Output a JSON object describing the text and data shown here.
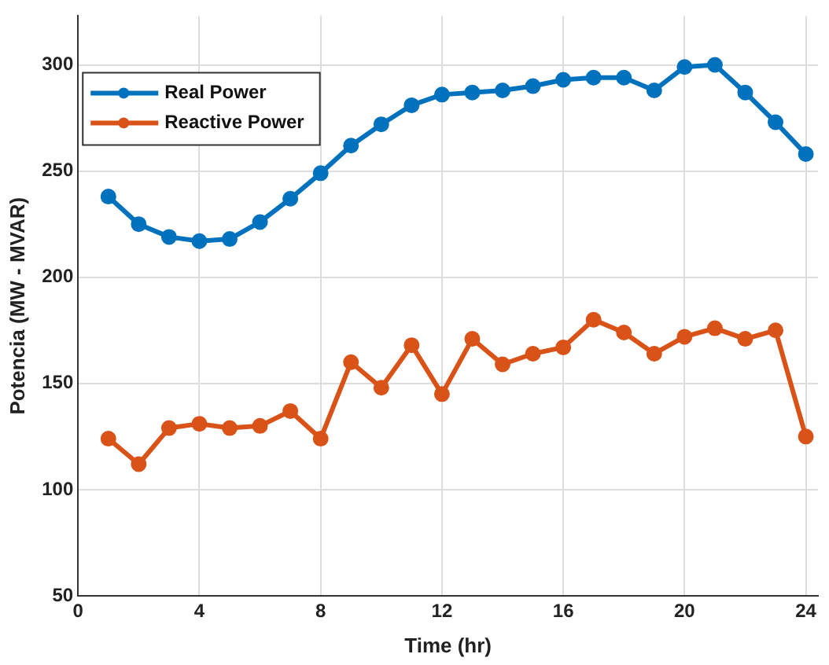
{
  "chart_data": {
    "type": "line",
    "xlabel": "Time (hr)",
    "ylabel": "Potencia (MW - MVAR)",
    "x": [
      1,
      2,
      3,
      4,
      5,
      6,
      7,
      8,
      9,
      10,
      11,
      12,
      13,
      14,
      15,
      16,
      17,
      18,
      19,
      20,
      21,
      22,
      23,
      24
    ],
    "series": [
      {
        "name": "Real Power",
        "color": "#0072bd",
        "values": [
          238,
          225,
          219,
          217,
          218,
          226,
          237,
          249,
          262,
          272,
          281,
          286,
          287,
          288,
          290,
          293,
          294,
          294,
          288,
          299,
          300,
          287,
          273,
          258
        ]
      },
      {
        "name": "Reactive Power",
        "color": "#d95319",
        "values": [
          124,
          112,
          129,
          131,
          129,
          130,
          137,
          124,
          160,
          148,
          168,
          145,
          171,
          159,
          164,
          167,
          180,
          174,
          164,
          172,
          176,
          171,
          175,
          125
        ]
      }
    ],
    "xlim": [
      0,
      24.4
    ],
    "xticks": [
      0,
      4,
      8,
      12,
      16,
      20,
      24
    ],
    "ylim": [
      50,
      323
    ],
    "yticks": [
      50,
      100,
      150,
      200,
      250,
      300
    ],
    "grid": true,
    "legend": "top left",
    "marker": "circle",
    "line_style": "solid"
  }
}
